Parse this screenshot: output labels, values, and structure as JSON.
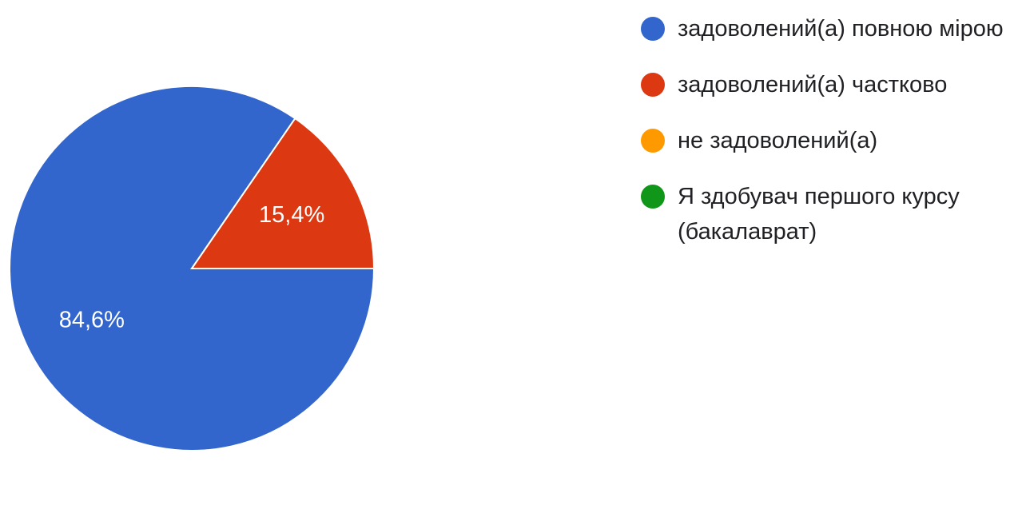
{
  "chart_data": {
    "type": "pie",
    "slices": [
      {
        "label": "задоволений(а) повною мірою",
        "value": 84.6,
        "display": "84,6%",
        "color": "#3366cc"
      },
      {
        "label": "задоволений(а) частково",
        "value": 15.4,
        "display": "15,4%",
        "color": "#dc3912"
      },
      {
        "label": "не задоволений(а)",
        "value": 0,
        "display": "",
        "color": "#ff9900"
      },
      {
        "label": "Я здобувач першого курсу (бакалаврат)",
        "value": 0,
        "display": "",
        "color": "#109618"
      }
    ],
    "legend_position": "right"
  }
}
